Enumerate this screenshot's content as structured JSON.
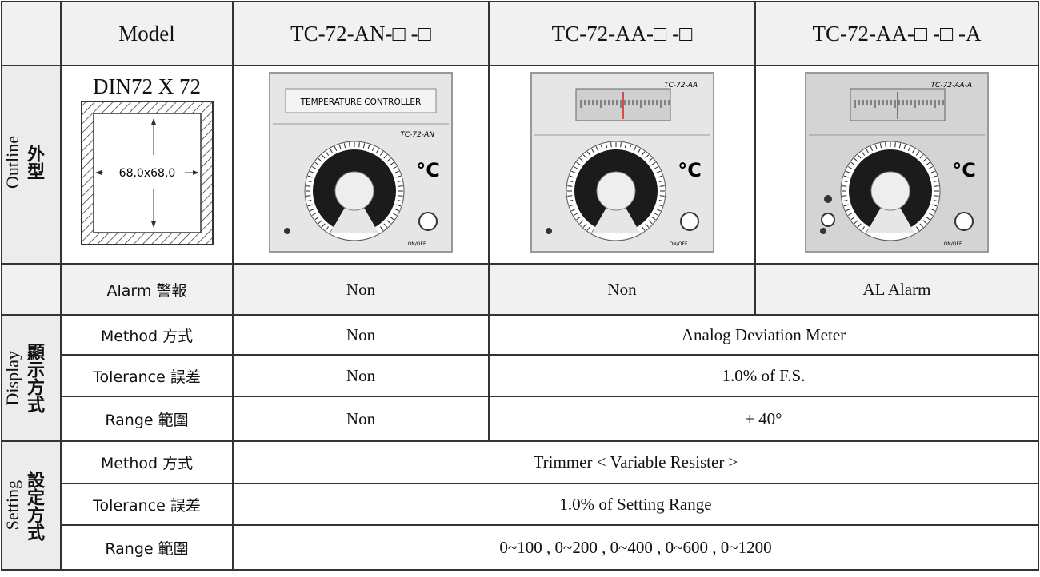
{
  "table": {
    "header": [
      "Model",
      "TC-72-AN-□ -□",
      "TC-72-AA-□ -□",
      "TC-72-AA-□ -□ -A"
    ],
    "outline": {
      "group_latin": "Outline",
      "group_cjk": "外型",
      "label": "DIN72 X 72",
      "dimension": "68.0x68.0",
      "products": [
        {
          "caption": "TEMPERATURE CONTROLLER",
          "model": "TC-72-AN",
          "unit": "°C",
          "switch": "ON/OFF"
        },
        {
          "model": "TC-72-AA",
          "unit": "°C",
          "switch": "ON/OFF"
        },
        {
          "model": "TC-72-AA-A",
          "unit": "°C",
          "switch": "ON/OFF"
        }
      ]
    },
    "alarm": {
      "label": "Alarm 警報",
      "cells": [
        "Non",
        "Non",
        "AL Alarm"
      ]
    },
    "display": {
      "group_latin": "Display",
      "group_cjk": "顯示方式",
      "rows": [
        {
          "label": "Method 方式",
          "cells": [
            "Non",
            "Analog Deviation Meter"
          ]
        },
        {
          "label": "Tolerance 誤差",
          "cells": [
            "Non",
            "1.0% of F.S."
          ]
        },
        {
          "label": "Range 範圍",
          "cells": [
            "Non",
            "± 40°"
          ]
        }
      ]
    },
    "setting": {
      "group_latin": "Setting",
      "group_cjk": "設定方式",
      "rows": [
        {
          "label": "Method 方式",
          "cells": [
            "Trimmer < Variable Resister >"
          ]
        },
        {
          "label": "Tolerance 誤差",
          "cells": [
            "1.0% of Setting Range"
          ]
        },
        {
          "label": "Range 範圍",
          "cells": [
            "0~100 , 0~200 , 0~400 , 0~600 , 0~1200"
          ]
        }
      ]
    }
  }
}
